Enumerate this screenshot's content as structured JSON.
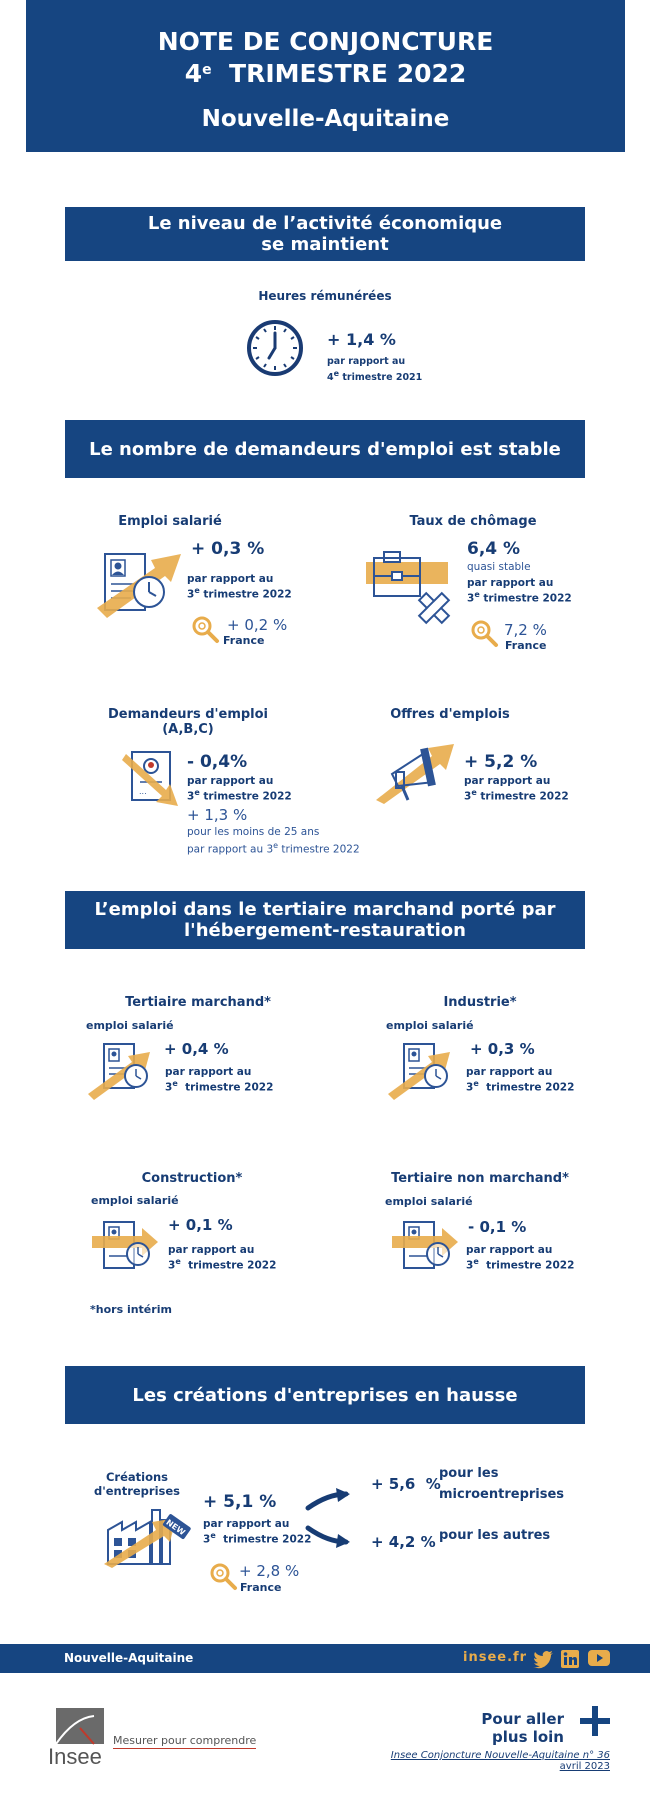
{
  "header": {
    "line1": "NOTE DE CONJONCTURE",
    "line2_num": "4",
    "line2_sup": "e",
    "line2_rest": "TRIMESTRE 2022",
    "region": "Nouvelle-Aquitaine"
  },
  "section1": {
    "banner_l1": "Le niveau de l’activité économique",
    "banner_l2": "se maintient",
    "heures": {
      "title": "Heures rémunérées",
      "value": "+ 1,4 %",
      "sub1": "par rapport au",
      "sub_num": "4",
      "sub_sup": "e",
      "sub_rest": "trimestre 2021"
    }
  },
  "section2": {
    "banner": "Le nombre de demandeurs d'emploi est stable",
    "emploi": {
      "title": "Emploi salarié",
      "value": "+ 0,3 %",
      "sub1": "par rapport au",
      "sub_num": "3",
      "sub_sup": "e",
      "sub_rest": "trimestre 2022",
      "france_value": "+ 0,2 %",
      "france_label": "France"
    },
    "chomage": {
      "title": "Taux de chômage",
      "value": "6,4 %",
      "note": "quasi stable",
      "sub1": "par rapport au",
      "sub_num": "3",
      "sub_sup": "e",
      "sub_rest": "trimestre 2022",
      "france_value": "7,2 %",
      "france_label": "France"
    },
    "demandeurs": {
      "title1": "Demandeurs d'emploi",
      "title2": "(A,B,C)",
      "value": "- 0,4%",
      "sub1": "par rapport au",
      "sub_num": "3",
      "sub_sup": "e",
      "sub_rest": "trimestre 2022",
      "young_value": "+ 1,3 %",
      "young_l1": "pour les moins de 25 ans",
      "young_l2a": "par rapport au 3",
      "young_sup": "e",
      "young_l2b": "trimestre 2022"
    },
    "offres": {
      "title": "Offres d'emplois",
      "value": "+ 5,2 %",
      "sub1": "par rapport au",
      "sub_num": "3",
      "sub_sup": "e",
      "sub_rest": "trimestre 2022"
    }
  },
  "section3": {
    "banner_l1": "L’emploi dans le tertiaire marchand porté par",
    "banner_l2": "l'hébergement-restauration",
    "tertiaire": {
      "title": "Tertiaire marchand*",
      "label": "emploi salarié",
      "value": "+ 0,4 %",
      "sub1": "par rapport au",
      "sub_num": "3",
      "sub_sup": "e",
      "sub_rest": "trimestre 2022"
    },
    "industrie": {
      "title": "Industrie*",
      "label": "emploi salarié",
      "value": "+ 0,3 %",
      "sub1": "par rapport au",
      "sub_num": "3",
      "sub_sup": "e",
      "sub_rest": "trimestre 2022"
    },
    "construction": {
      "title": "Construction*",
      "label": "emploi salarié",
      "value": "+ 0,1 %",
      "sub1": "par rapport au",
      "sub_num": "3",
      "sub_sup": "e",
      "sub_rest": "trimestre 2022"
    },
    "nonmarchand": {
      "title": "Tertiaire non marchand*",
      "label": "emploi salarié",
      "value": "- 0,1 %",
      "sub1": "par rapport au",
      "sub_num": "3",
      "sub_sup": "e",
      "sub_rest": "trimestre 2022"
    },
    "footnote": "*hors intérim"
  },
  "section4": {
    "banner": "Les créations d'entreprises en hausse",
    "creations": {
      "title1": "Créations",
      "title2": "d'entreprises",
      "value": "+ 5,1 %",
      "sub1": "par rapport au",
      "sub_num": "3",
      "sub_sup": "e",
      "sub_rest": "trimestre 2022",
      "france_value": "+ 2,8 %",
      "france_label": "France",
      "badge": "NEW"
    },
    "micro": {
      "value": "+ 5,6  %",
      "label1": "pour les",
      "label2": "microentreprises"
    },
    "autres": {
      "value": "+ 4,2 %",
      "label": "pour les autres"
    }
  },
  "footer": {
    "region": "Nouvelle-Aquitaine",
    "site": "insee.fr",
    "social": [
      "twitter-icon",
      "linkedin-icon",
      "youtube-icon"
    ],
    "logo_text": "Insee",
    "tagline": "Mesurer pour comprendre",
    "more_l1": "Pour aller",
    "more_l2": "plus loin",
    "pub_title": "Insee Conjoncture Nouvelle-Aquitaine n° 36",
    "pub_date": "avril 2023"
  },
  "colors": {
    "navy": "#164581",
    "gold": "#e8ac4b",
    "text": "#173c74"
  }
}
